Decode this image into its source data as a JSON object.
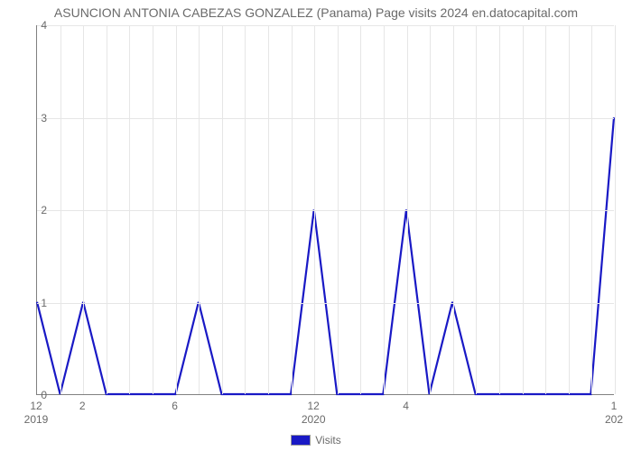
{
  "chart": {
    "type": "line",
    "title": "ASUNCION ANTONIA CABEZAS GONZALEZ (Panama) Page visits 2024 en.datocapital.com",
    "title_fontsize": 14,
    "title_color": "#6a6a6a",
    "background_color": "#ffffff",
    "grid_color": "#e6e6e6",
    "axis_color": "#808080",
    "tick_color": "#6a6a6a",
    "tick_fontsize": 12,
    "ylim": [
      0,
      4
    ],
    "yticks": [
      0,
      1,
      2,
      3,
      4
    ],
    "xticks": [
      {
        "i": 0,
        "label": "12",
        "year": "2019"
      },
      {
        "i": 2,
        "label": "2"
      },
      {
        "i": 6,
        "label": "6"
      },
      {
        "i": 12,
        "label": "12",
        "year": "2020"
      },
      {
        "i": 16,
        "label": "4"
      },
      {
        "i": 25,
        "label": "1",
        "year": "202"
      }
    ],
    "series": {
      "name": "Visits",
      "color": "#1919c5",
      "line_width": 2.2,
      "values": [
        1,
        0,
        1,
        0,
        0,
        0,
        0,
        1,
        0,
        0,
        0,
        0,
        2,
        0,
        0,
        0,
        2,
        0,
        1,
        0,
        0,
        0,
        0,
        0,
        0,
        3
      ]
    },
    "legend": {
      "label": "Visits",
      "swatch_color": "#1919c5"
    }
  }
}
